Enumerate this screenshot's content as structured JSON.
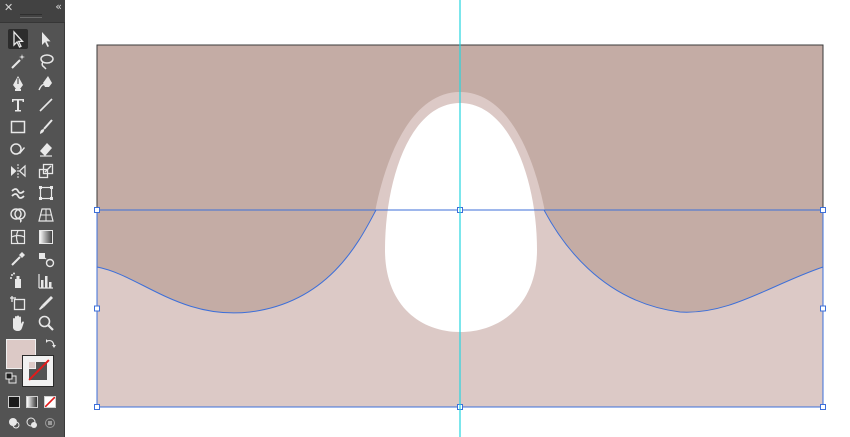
{
  "toolbar": {
    "close_glyph": "✕",
    "collapse_glyph": "«",
    "tools": [
      {
        "name": "selection-tool-icon",
        "active": true
      },
      {
        "name": "direct-selection-tool-icon"
      },
      {
        "name": "magic-wand-tool-icon"
      },
      {
        "name": "lasso-tool-icon"
      },
      {
        "name": "pen-tool-icon"
      },
      {
        "name": "curvature-tool-icon"
      },
      {
        "name": "type-tool-icon"
      },
      {
        "name": "line-segment-tool-icon"
      },
      {
        "name": "rectangle-tool-icon"
      },
      {
        "name": "paintbrush-tool-icon"
      },
      {
        "name": "shaper-tool-icon"
      },
      {
        "name": "eraser-tool-icon"
      },
      {
        "name": "reflect-tool-icon"
      },
      {
        "name": "scale-tool-icon"
      },
      {
        "name": "warp-tool-icon"
      },
      {
        "name": "free-transform-tool-icon"
      },
      {
        "name": "shape-builder-tool-icon"
      },
      {
        "name": "perspective-grid-tool-icon"
      },
      {
        "name": "mesh-tool-icon"
      },
      {
        "name": "gradient-tool-icon"
      },
      {
        "name": "eyedropper-tool-icon"
      },
      {
        "name": "blend-tool-icon"
      },
      {
        "name": "symbol-sprayer-tool-icon"
      },
      {
        "name": "column-graph-tool-icon"
      },
      {
        "name": "artboard-tool-icon"
      },
      {
        "name": "slice-tool-icon"
      },
      {
        "name": "hand-tool-icon"
      },
      {
        "name": "zoom-tool-icon"
      }
    ],
    "fill_color": "#dcc9c6",
    "stroke_color": "none"
  },
  "colors": {
    "toolbar_bg": "#535353",
    "upper_shape": "#c4aca5",
    "lower_shape": "#dcc9c6",
    "egg_rim": "#dcc9c6",
    "egg": "#ffffff",
    "selection_blue": "#3d6fd9",
    "guide_cyan": "#25d6e0"
  }
}
